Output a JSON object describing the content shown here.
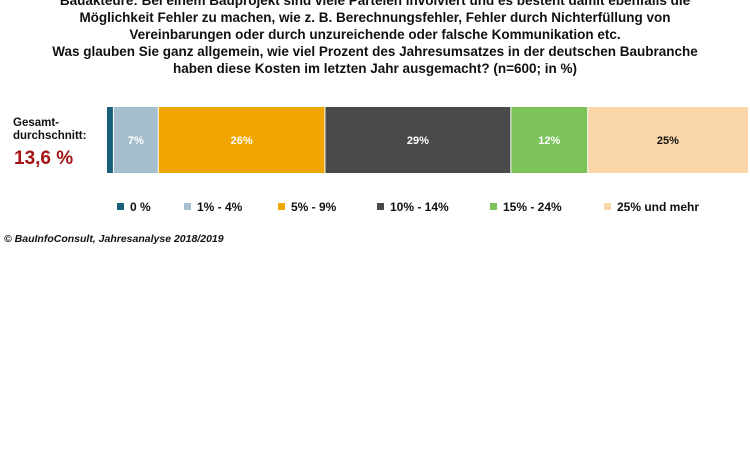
{
  "question": {
    "lines": [
      "Bauakteure: Bei einem Bauprojekt sind viele Parteien involviert und es besteht damit ebenfalls die",
      "Möglichkeit Fehler zu machen, wie z. B. Berechnungsfehler, Fehler durch Nichterfüllung von",
      "Vereinbarungen oder durch unzureichende oder falsche Kommunikation etc.",
      "Was glauben Sie ganz allgemein, wie viel Prozent des Jahresumsatzes in der deutschen Baubranche",
      "haben diese Kosten im letzten Jahr ausgemacht? (n=600; in %)"
    ]
  },
  "average": {
    "label_line1": "Gesamt-",
    "label_line2": "durchschnitt:",
    "value": "13,6 %"
  },
  "chart_data": {
    "type": "bar",
    "orientation": "horizontal-stacked",
    "unit": "%",
    "categories": [
      "Gesamtdurchschnitt"
    ],
    "series": [
      {
        "name": "0 %",
        "value": 1,
        "label": "",
        "color": "#17607a"
      },
      {
        "name": "1% - 4%",
        "value": 7,
        "label": "7%",
        "color": "#a6bfcf"
      },
      {
        "name": "5% - 9%",
        "value": 26,
        "label": "26%",
        "color": "#f0a500"
      },
      {
        "name": "10% - 14%",
        "value": 29,
        "label": "29%",
        "color": "#4a4a4a"
      },
      {
        "name": "15% - 24%",
        "value": 12,
        "label": "12%",
        "color": "#7dc35b"
      },
      {
        "name": "25% und mehr",
        "value": 25,
        "label": "25%",
        "color": "#f9d5a8"
      }
    ],
    "label_colors": [
      "#ffffff",
      "#ffffff",
      "#ffffff",
      "#ffffff",
      "#ffffff",
      "#111111"
    ],
    "legend_position": "bottom"
  },
  "source": "© BauInfoConsult, Jahresanalyse 2018/2019"
}
